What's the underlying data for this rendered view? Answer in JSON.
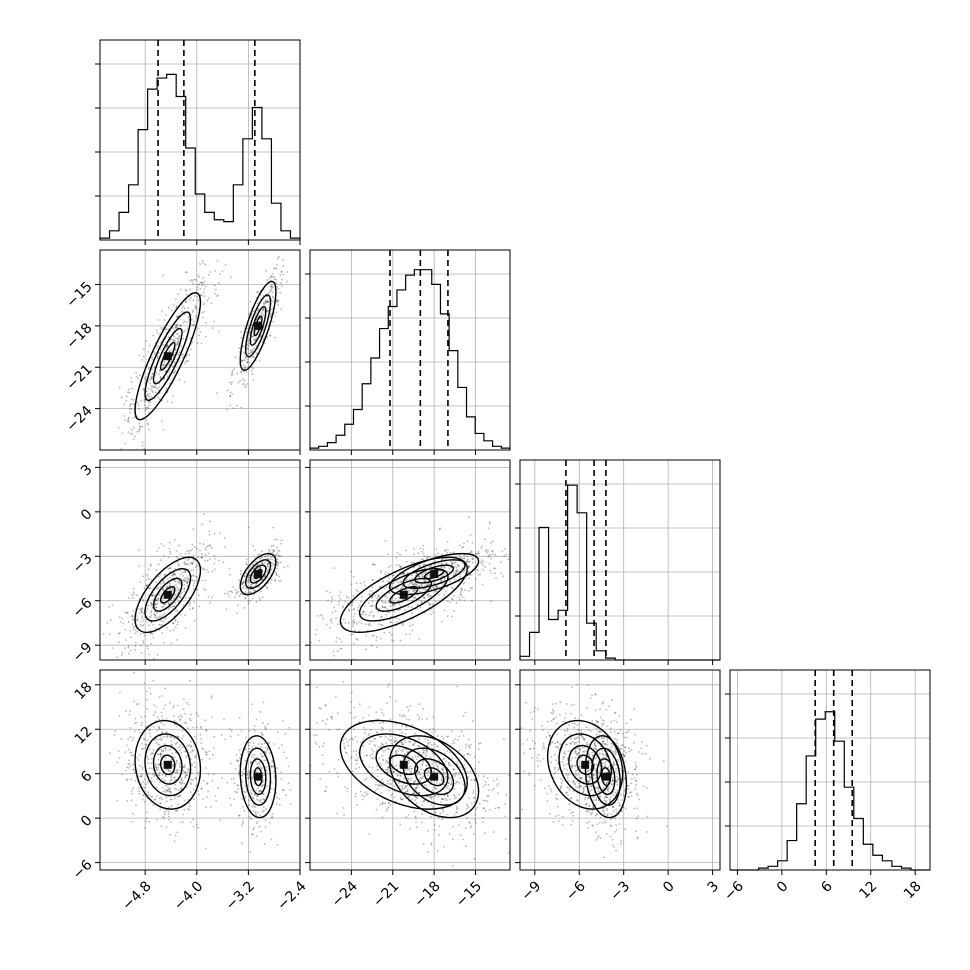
{
  "chart_data": {
    "type": "corner",
    "parameters": [
      {
        "id": "p0",
        "range": [
          -5.5,
          -2.4
        ],
        "ticks": [
          -4.8,
          -4.0,
          -3.2,
          -2.4
        ],
        "tick_labels": [
          "−4.8",
          "−4.0",
          "−3.2",
          "−2.4"
        ],
        "hist_bins": [
          0.01,
          0.05,
          0.15,
          0.3,
          0.6,
          0.82,
          0.88,
          0.9,
          0.78,
          0.5,
          0.25,
          0.15,
          0.11,
          0.1,
          0.3,
          0.55,
          0.72,
          0.55,
          0.2,
          0.05,
          0.01
        ],
        "quantiles": [
          -4.6,
          -4.2,
          -3.1
        ]
      },
      {
        "id": "p1",
        "range": [
          -27,
          -12.5
        ],
        "ticks": [
          -24,
          -21,
          -18,
          -15
        ],
        "tick_labels": [
          "−24",
          "−21",
          "−18",
          "−15"
        ],
        "hist_bins": [
          0.01,
          0.02,
          0.04,
          0.08,
          0.14,
          0.22,
          0.36,
          0.5,
          0.66,
          0.78,
          0.87,
          0.95,
          0.98,
          0.98,
          0.9,
          0.74,
          0.54,
          0.34,
          0.18,
          0.09,
          0.05,
          0.02,
          0.01
        ],
        "quantiles": [
          -21.2,
          -19.0,
          -17.0
        ]
      },
      {
        "id": "p2",
        "range": [
          -10,
          3.5
        ],
        "ticks": [
          -9,
          -6,
          -3,
          0,
          3
        ],
        "tick_labels": [
          "−9",
          "−6",
          "−3",
          "0",
          "3"
        ],
        "hist_bins": [
          0.02,
          0.15,
          0.72,
          0.22,
          0.27,
          0.95,
          0.8,
          0.2,
          0.05,
          0.01,
          0.0,
          0.0,
          0.0,
          0.0,
          0.0,
          0.0,
          0.0,
          0.0,
          0.0,
          0.0,
          0.0
        ],
        "quantiles": [
          -6.9,
          -5.0,
          -4.2
        ]
      },
      {
        "id": "p3",
        "range": [
          -7,
          20
        ],
        "ticks": [
          -6,
          0,
          6,
          12,
          18
        ],
        "tick_labels": [
          "−6",
          "0",
          "6",
          "12",
          "18"
        ],
        "hist_bins": [
          0.0,
          0.0,
          0.0,
          0.01,
          0.02,
          0.05,
          0.16,
          0.36,
          0.62,
          0.82,
          0.86,
          0.7,
          0.45,
          0.28,
          0.14,
          0.08,
          0.05,
          0.02,
          0.01,
          0.0,
          0.0
        ],
        "quantiles": [
          4.5,
          7.0,
          9.5
        ]
      }
    ],
    "components": [
      {
        "weight": 0.62,
        "mean": [
          -4.45,
          -20.2,
          -5.6,
          7.2
        ],
        "std": [
          0.22,
          2.0,
          1.1,
          2.6
        ]
      },
      {
        "weight": 0.38,
        "mean": [
          -3.05,
          -18.0,
          -4.2,
          5.6
        ],
        "std": [
          0.12,
          1.4,
          0.6,
          2.4
        ]
      }
    ],
    "grid": true,
    "legend": "none"
  }
}
